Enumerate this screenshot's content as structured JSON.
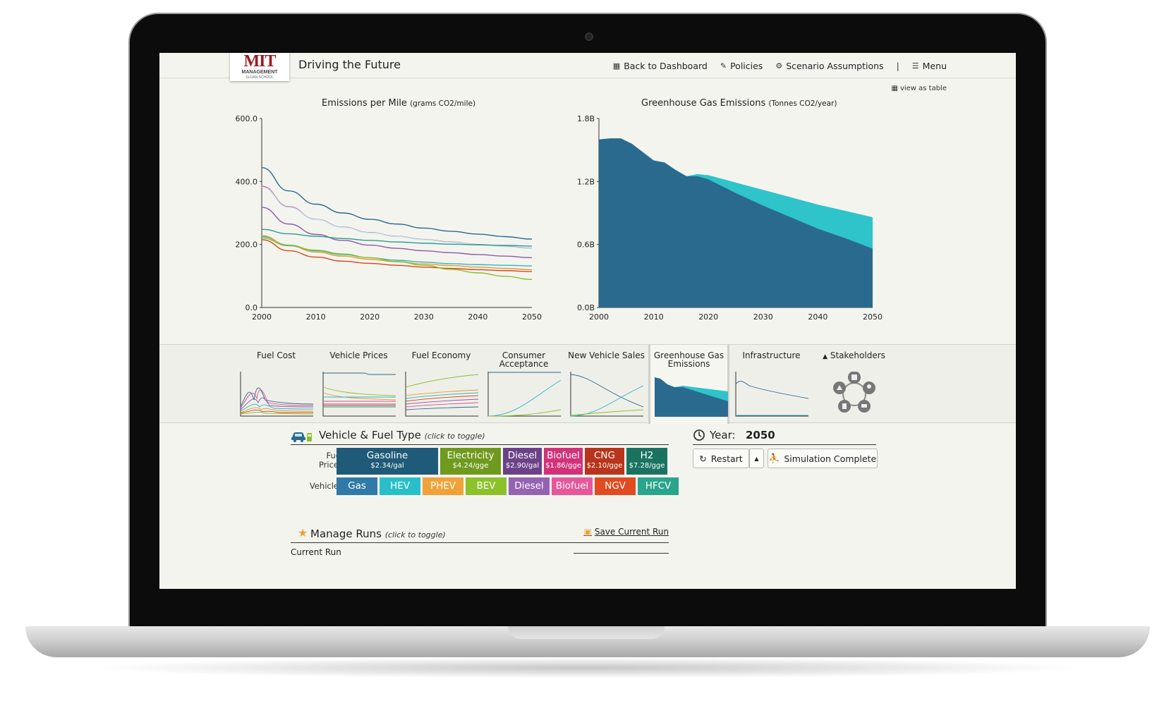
{
  "app": {
    "title": "Driving the Future",
    "logo_mark": "MIT",
    "logo_sub": "MANAGEMENT",
    "logo_sub2": "SLOAN SCHOOL"
  },
  "nav": {
    "dashboard": "Back to Dashboard",
    "policies": "Policies",
    "assumptions": "Scenario Assumptions",
    "separator": "|",
    "menu": "Menu"
  },
  "view_as_table": "view as table",
  "charts": {
    "emissions": {
      "title": "Emissions per Mile",
      "unit": "(grams CO2/mile)"
    },
    "ghg": {
      "title": "Greenhouse Gas Emissions",
      "unit": "(Tonnes CO2/year)"
    }
  },
  "chart_data": [
    {
      "type": "line",
      "title": "Emissions per Mile (grams CO2/mile)",
      "xlim": [
        2000,
        2050
      ],
      "ylim": [
        0,
        600
      ],
      "xticks": [
        "2000",
        "2010",
        "2020",
        "2030",
        "2040",
        "2050"
      ],
      "yticks": [
        "0.0",
        "200.0",
        "400.0",
        "600.0"
      ],
      "grid": false,
      "x": [
        2000,
        2005,
        2010,
        2015,
        2020,
        2025,
        2030,
        2035,
        2040,
        2045,
        2050
      ],
      "series": [
        {
          "color": "#2a6a8f",
          "values": [
            444,
            370,
            328,
            300,
            280,
            265,
            252,
            242,
            233,
            225,
            217
          ]
        },
        {
          "color": "#e0518e",
          "values": [
            385,
            320,
            280,
            255,
            238,
            226,
            216,
            208,
            200,
            194,
            188
          ]
        },
        {
          "color": "#b7f0f6",
          "values": [
            382,
            318,
            279,
            254,
            237,
            225,
            215,
            207,
            199,
            193,
            187
          ]
        },
        {
          "color": "#8b5aa8",
          "values": [
            318,
            265,
            232,
            213,
            198,
            188,
            180,
            174,
            168,
            163,
            158
          ]
        },
        {
          "color": "#2e9a8c",
          "values": [
            248,
            234,
            226,
            219,
            213,
            208,
            204,
            201,
            199,
            197,
            195
          ]
        },
        {
          "color": "#2bb7c7",
          "values": [
            225,
            198,
            180,
            168,
            158,
            150,
            144,
            139,
            136,
            134,
            132
          ]
        },
        {
          "color": "#e59b2e",
          "values": [
            228,
            196,
            176,
            163,
            153,
            145,
            138,
            133,
            128,
            124,
            120
          ]
        },
        {
          "color": "#d8461f",
          "values": [
            215,
            180,
            160,
            147,
            140,
            134,
            128,
            124,
            120,
            117,
            114
          ]
        },
        {
          "color": "#8cbf2a",
          "values": [
            220,
            196,
            182,
            170,
            158,
            146,
            134,
            121,
            110,
            99,
            89
          ]
        }
      ]
    },
    {
      "type": "area",
      "title": "Greenhouse Gas Emissions (Tonnes CO2/year)",
      "xlim": [
        2000,
        2050
      ],
      "ylim": [
        0,
        1.8
      ],
      "xticks": [
        "2000",
        "2010",
        "2020",
        "2030",
        "2040",
        "2050"
      ],
      "yticks": [
        "0.0B",
        "0.6B",
        "1.2B",
        "1.8B"
      ],
      "grid": false,
      "x": [
        2000,
        2002,
        2004,
        2006,
        2008,
        2010,
        2012,
        2014,
        2016,
        2018,
        2020,
        2025,
        2030,
        2035,
        2040,
        2045,
        2050
      ],
      "series": [
        {
          "color": "#2ec4c9",
          "values": [
            1.6,
            1.61,
            1.61,
            1.56,
            1.48,
            1.4,
            1.38,
            1.31,
            1.25,
            1.27,
            1.26,
            1.19,
            1.12,
            1.05,
            0.98,
            0.92,
            0.86
          ]
        },
        {
          "color": "#2a6a8f",
          "values": [
            1.6,
            1.61,
            1.61,
            1.56,
            1.48,
            1.4,
            1.38,
            1.31,
            1.25,
            1.25,
            1.22,
            1.09,
            0.97,
            0.86,
            0.75,
            0.66,
            0.56
          ]
        }
      ]
    }
  ],
  "tabs": [
    {
      "label": "Fuel Cost"
    },
    {
      "label": "Vehicle Prices"
    },
    {
      "label": "Fuel Economy"
    },
    {
      "label": "Consumer Acceptance"
    },
    {
      "label": "New Vehicle Sales"
    },
    {
      "label": "Greenhouse Gas Emissions"
    },
    {
      "label": "Infrastructure"
    },
    {
      "label": "Stakeholders"
    }
  ],
  "vehicle_fuel": {
    "title": "Vehicle & Fuel Type",
    "hint": "(click to toggle)",
    "fuel_prices_label": "Fuel Prices",
    "vehicles_label": "Vehicles",
    "fuels": [
      {
        "name": "Gasoline",
        "price": "$2.34/gal",
        "color": "#1f5a78"
      },
      {
        "name": "Electricity",
        "price": "$4.24/gge",
        "color": "#6f9a1e"
      },
      {
        "name": "Diesel",
        "price": "$2.90/gal",
        "color": "#6b4288"
      },
      {
        "name": "Biofuel",
        "price": "$1.86/gge",
        "color": "#d3317a"
      },
      {
        "name": "CNG",
        "price": "$2.10/gge",
        "color": "#b8341a"
      },
      {
        "name": "H2",
        "price": "$7.28/gge",
        "color": "#1a7361"
      }
    ],
    "vehicles": [
      {
        "name": "Gas",
        "color": "#2f7aa6"
      },
      {
        "name": "HEV",
        "color": "#29bfc9"
      },
      {
        "name": "PHEV",
        "color": "#f0a238"
      },
      {
        "name": "BEV",
        "color": "#8cc12a"
      },
      {
        "name": "Diesel",
        "color": "#9563b4"
      },
      {
        "name": "Biofuel",
        "color": "#e7579a"
      },
      {
        "name": "NGV",
        "color": "#e24a1f"
      },
      {
        "name": "HFCV",
        "color": "#2aa58b"
      }
    ]
  },
  "simulation": {
    "year_label": "Year:",
    "year": "2050",
    "restart": "Restart",
    "status": "Simulation Complete"
  },
  "runs": {
    "title": "Manage Runs",
    "hint": "(click to toggle)",
    "save": "Save Current Run",
    "current": "Current Run"
  }
}
